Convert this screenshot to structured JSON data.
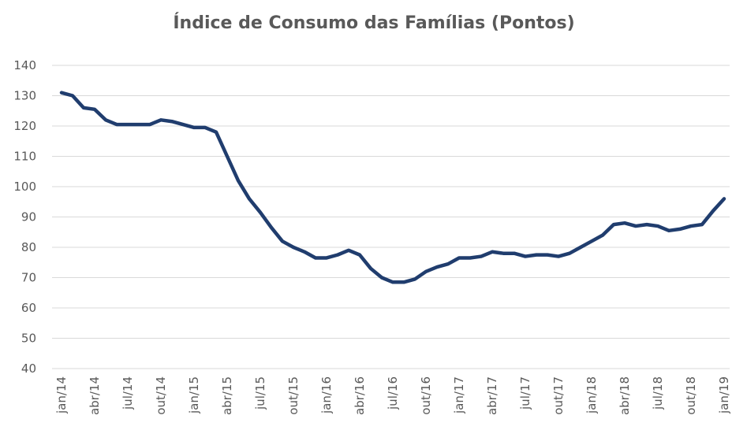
{
  "chart_data": {
    "type": "line",
    "title": "Índice de Consumo das Famílias (Pontos)",
    "categories": [
      "jan/14",
      null,
      null,
      "abr/14",
      null,
      null,
      "jul/14",
      null,
      null,
      "out/14",
      null,
      null,
      "jan/15",
      null,
      null,
      "abr/15",
      null,
      null,
      "jul/15",
      null,
      null,
      "out/15",
      null,
      null,
      "jan/16",
      null,
      null,
      "abr/16",
      null,
      null,
      "jul/16",
      null,
      null,
      "out/16",
      null,
      null,
      "jan/17",
      null,
      null,
      "abr/17",
      null,
      null,
      "jul/17",
      null,
      null,
      "out/17",
      null,
      null,
      "jan/18",
      null,
      null,
      "abr/18",
      null,
      null,
      "jul/18",
      null,
      null,
      "out/18",
      null,
      null,
      "jan/19"
    ],
    "series": [
      {
        "name": "Índice de Consumo das Famílias",
        "color": "#203d6e",
        "values": [
          131,
          130,
          126,
          125.5,
          122,
          120.5,
          120.5,
          120.5,
          120.5,
          122,
          121.5,
          120.5,
          119.5,
          119.5,
          118,
          110,
          102,
          96,
          91.5,
          86.5,
          82,
          80,
          78.5,
          76.5,
          76.5,
          77.5,
          79,
          77.5,
          73,
          70,
          68.5,
          68.5,
          69.5,
          72,
          73.5,
          74.5,
          76.5,
          76.5,
          77,
          78.5,
          78,
          78,
          77,
          77.5,
          77.5,
          77,
          78,
          80,
          82,
          84,
          87.5,
          88,
          87,
          87.5,
          87,
          85.5,
          86,
          87,
          87.5,
          92,
          96
        ]
      }
    ],
    "ylim": [
      40,
      140
    ],
    "yticks": [
      40,
      50,
      60,
      70,
      80,
      90,
      100,
      110,
      120,
      130,
      140
    ],
    "grid": true
  }
}
